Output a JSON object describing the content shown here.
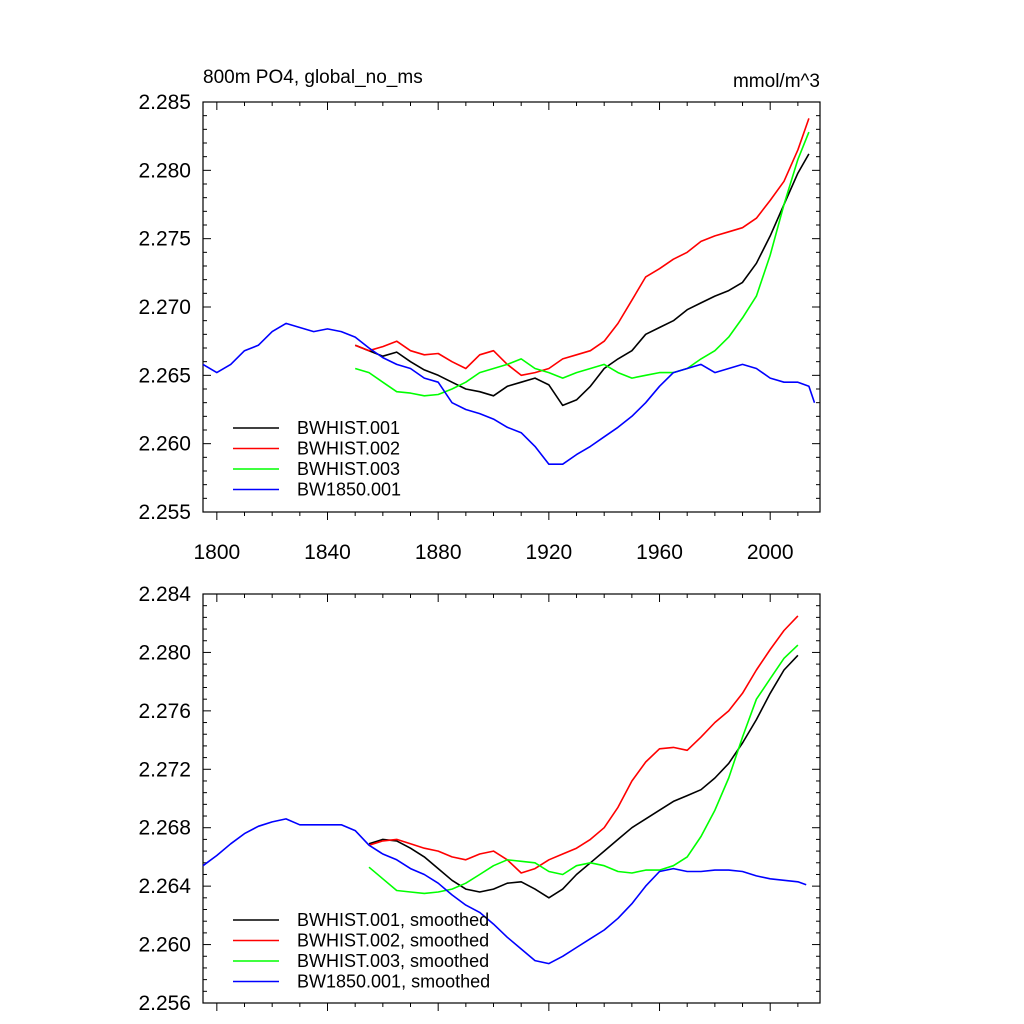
{
  "chart_data": [
    {
      "type": "line",
      "title": "800m PO4, global_no_ms",
      "units": "mmol/m^3",
      "xlim": [
        1795,
        2018
      ],
      "ylim": [
        2.255,
        2.285
      ],
      "xticks": [
        1800,
        1840,
        1880,
        1920,
        1960,
        2000
      ],
      "yticks": [
        2.255,
        2.26,
        2.265,
        2.27,
        2.275,
        2.28,
        2.285
      ],
      "xtick_labels": [
        "1800",
        "1840",
        "1880",
        "1920",
        "1960",
        "2000"
      ],
      "ytick_labels": [
        "2.255",
        "2.260",
        "2.265",
        "2.270",
        "2.275",
        "2.280",
        "2.285"
      ],
      "legend_placement": "bottom-left",
      "series": [
        {
          "name": "BWHIST.001",
          "color": "#000000",
          "x": [
            1850,
            1855,
            1860,
            1865,
            1870,
            1875,
            1880,
            1885,
            1890,
            1895,
            1900,
            1905,
            1910,
            1915,
            1920,
            1925,
            1930,
            1935,
            1940,
            1945,
            1950,
            1955,
            1960,
            1965,
            1970,
            1975,
            1980,
            1985,
            1990,
            1995,
            2000,
            2005,
            2010,
            2014
          ],
          "y": [
            2.2672,
            2.2668,
            2.2664,
            2.2667,
            2.266,
            2.2654,
            2.265,
            2.2645,
            2.264,
            2.2638,
            2.2635,
            2.2642,
            2.2645,
            2.2648,
            2.2643,
            2.2628,
            2.2632,
            2.2642,
            2.2655,
            2.2662,
            2.2668,
            2.268,
            2.2685,
            2.269,
            2.2698,
            2.2703,
            2.2708,
            2.2712,
            2.2718,
            2.2732,
            2.2752,
            2.2775,
            2.2798,
            2.2812
          ]
        },
        {
          "name": "BWHIST.002",
          "color": "#ff0000",
          "x": [
            1850,
            1855,
            1860,
            1865,
            1870,
            1875,
            1880,
            1885,
            1890,
            1895,
            1900,
            1905,
            1910,
            1915,
            1920,
            1925,
            1930,
            1935,
            1940,
            1945,
            1950,
            1955,
            1960,
            1965,
            1970,
            1975,
            1980,
            1985,
            1990,
            1995,
            2000,
            2005,
            2010,
            2014
          ],
          "y": [
            2.2672,
            2.2668,
            2.2671,
            2.2675,
            2.2668,
            2.2665,
            2.2666,
            2.266,
            2.2655,
            2.2665,
            2.2668,
            2.2658,
            2.265,
            2.2652,
            2.2655,
            2.2662,
            2.2665,
            2.2668,
            2.2675,
            2.2688,
            2.2705,
            2.2722,
            2.2728,
            2.2735,
            2.274,
            2.2748,
            2.2752,
            2.2755,
            2.2758,
            2.2765,
            2.2778,
            2.2792,
            2.2815,
            2.2838
          ]
        },
        {
          "name": "BWHIST.003",
          "color": "#00ff00",
          "x": [
            1850,
            1855,
            1860,
            1865,
            1870,
            1875,
            1880,
            1885,
            1890,
            1895,
            1900,
            1905,
            1910,
            1915,
            1920,
            1925,
            1930,
            1935,
            1940,
            1945,
            1950,
            1955,
            1960,
            1965,
            1970,
            1975,
            1980,
            1985,
            1990,
            1995,
            2000,
            2005,
            2010,
            2014
          ],
          "y": [
            2.2655,
            2.2652,
            2.2645,
            2.2638,
            2.2637,
            2.2635,
            2.2636,
            2.264,
            2.2645,
            2.2652,
            2.2655,
            2.2658,
            2.2662,
            2.2655,
            2.2652,
            2.2648,
            2.2652,
            2.2655,
            2.2658,
            2.2652,
            2.2648,
            2.265,
            2.2652,
            2.2652,
            2.2655,
            2.2662,
            2.2668,
            2.2678,
            2.2692,
            2.2708,
            2.2738,
            2.2775,
            2.2808,
            2.2828
          ]
        },
        {
          "name": "BW1850.001",
          "color": "#0000ff",
          "x": [
            1795,
            1800,
            1805,
            1810,
            1815,
            1820,
            1825,
            1830,
            1835,
            1840,
            1845,
            1850,
            1855,
            1860,
            1865,
            1870,
            1875,
            1880,
            1885,
            1890,
            1895,
            1900,
            1905,
            1910,
            1915,
            1920,
            1925,
            1930,
            1935,
            1940,
            1945,
            1950,
            1955,
            1960,
            1965,
            1970,
            1975,
            1980,
            1985,
            1990,
            1995,
            2000,
            2005,
            2010,
            2014,
            2016
          ],
          "y": [
            2.2658,
            2.2652,
            2.2658,
            2.2668,
            2.2672,
            2.2682,
            2.2688,
            2.2685,
            2.2682,
            2.2684,
            2.2682,
            2.2678,
            2.267,
            2.2663,
            2.2658,
            2.2655,
            2.2648,
            2.2645,
            2.263,
            2.2625,
            2.2622,
            2.2618,
            2.2612,
            2.2608,
            2.2598,
            2.2585,
            2.2585,
            2.2592,
            2.2598,
            2.2605,
            2.2612,
            2.262,
            2.263,
            2.2642,
            2.2652,
            2.2655,
            2.2658,
            2.2652,
            2.2655,
            2.2658,
            2.2655,
            2.2648,
            2.2645,
            2.2645,
            2.2642,
            2.263
          ]
        }
      ]
    },
    {
      "type": "line",
      "xlim": [
        1795,
        2018
      ],
      "ylim": [
        2.256,
        2.284
      ],
      "xticks": [
        1800,
        1840,
        1880,
        1920,
        1960,
        2000
      ],
      "yticks": [
        2.256,
        2.26,
        2.264,
        2.268,
        2.272,
        2.276,
        2.28,
        2.284
      ],
      "ytick_labels": [
        "2.256",
        "2.260",
        "2.264",
        "2.268",
        "2.272",
        "2.276",
        "2.280",
        "2.284"
      ],
      "legend_placement": "bottom-left",
      "series": [
        {
          "name": "BWHIST.001, smoothed",
          "color": "#000000",
          "x": [
            1855,
            1860,
            1865,
            1870,
            1875,
            1880,
            1885,
            1890,
            1895,
            1900,
            1905,
            1910,
            1915,
            1920,
            1925,
            1930,
            1935,
            1940,
            1945,
            1950,
            1955,
            1960,
            1965,
            1970,
            1975,
            1980,
            1985,
            1990,
            1995,
            2000,
            2005,
            2010
          ],
          "y": [
            2.2669,
            2.2672,
            2.2671,
            2.2666,
            2.266,
            2.2652,
            2.2644,
            2.2638,
            2.2636,
            2.2638,
            2.2642,
            2.2643,
            2.2638,
            2.2632,
            2.2638,
            2.2648,
            2.2656,
            2.2664,
            2.2672,
            2.268,
            2.2686,
            2.2692,
            2.2698,
            2.2702,
            2.2706,
            2.2714,
            2.2724,
            2.2738,
            2.2754,
            2.2772,
            2.2788,
            2.2798
          ]
        },
        {
          "name": "BWHIST.002, smoothed",
          "color": "#ff0000",
          "x": [
            1855,
            1860,
            1865,
            1870,
            1875,
            1880,
            1885,
            1890,
            1895,
            1900,
            1905,
            1910,
            1915,
            1920,
            1925,
            1930,
            1935,
            1940,
            1945,
            1950,
            1955,
            1960,
            1965,
            1970,
            1975,
            1980,
            1985,
            1990,
            1995,
            2000,
            2005,
            2010
          ],
          "y": [
            2.2668,
            2.2671,
            2.2672,
            2.2669,
            2.2666,
            2.2664,
            2.266,
            2.2658,
            2.2662,
            2.2664,
            2.2658,
            2.2649,
            2.2652,
            2.2658,
            2.2662,
            2.2666,
            2.2672,
            2.268,
            2.2694,
            2.2712,
            2.2725,
            2.2734,
            2.2735,
            2.2733,
            2.2742,
            2.2752,
            2.276,
            2.2772,
            2.2788,
            2.2802,
            2.2815,
            2.2825
          ]
        },
        {
          "name": "BWHIST.003, smoothed",
          "color": "#00ff00",
          "x": [
            1855,
            1860,
            1865,
            1870,
            1875,
            1880,
            1885,
            1890,
            1895,
            1900,
            1905,
            1910,
            1915,
            1920,
            1925,
            1930,
            1935,
            1940,
            1945,
            1950,
            1955,
            1960,
            1965,
            1970,
            1975,
            1980,
            1985,
            1990,
            1995,
            2000,
            2005,
            2010
          ],
          "y": [
            2.2653,
            2.2645,
            2.2637,
            2.2636,
            2.2635,
            2.2636,
            2.2638,
            2.2642,
            2.2648,
            2.2654,
            2.2658,
            2.2657,
            2.2656,
            2.265,
            2.2648,
            2.2654,
            2.2656,
            2.2654,
            2.265,
            2.2649,
            2.2651,
            2.2651,
            2.2654,
            2.266,
            2.2674,
            2.2692,
            2.2714,
            2.2742,
            2.2768,
            2.2782,
            2.2796,
            2.2805
          ]
        },
        {
          "name": "BW1850.001, smoothed",
          "color": "#0000ff",
          "x": [
            1795,
            1800,
            1805,
            1810,
            1815,
            1820,
            1825,
            1830,
            1835,
            1840,
            1845,
            1850,
            1855,
            1860,
            1865,
            1870,
            1875,
            1880,
            1885,
            1890,
            1895,
            1900,
            1905,
            1910,
            1915,
            1920,
            1925,
            1930,
            1935,
            1940,
            1945,
            1950,
            1955,
            1960,
            1965,
            1970,
            1975,
            1980,
            1985,
            1990,
            1995,
            2000,
            2005,
            2010,
            2013
          ],
          "y": [
            2.2654,
            2.2661,
            2.2669,
            2.2676,
            2.2681,
            2.2684,
            2.2686,
            2.2682,
            2.2682,
            2.2682,
            2.2682,
            2.2678,
            2.2668,
            2.2662,
            2.2658,
            2.2652,
            2.2648,
            2.2642,
            2.2634,
            2.2627,
            2.2622,
            2.2614,
            2.2605,
            2.2597,
            2.2589,
            2.2587,
            2.2592,
            2.2598,
            2.2604,
            2.261,
            2.2618,
            2.2628,
            2.264,
            2.265,
            2.2652,
            2.265,
            2.265,
            2.2651,
            2.2651,
            2.265,
            2.2647,
            2.2645,
            2.2644,
            2.2643,
            2.2641
          ]
        }
      ]
    }
  ]
}
